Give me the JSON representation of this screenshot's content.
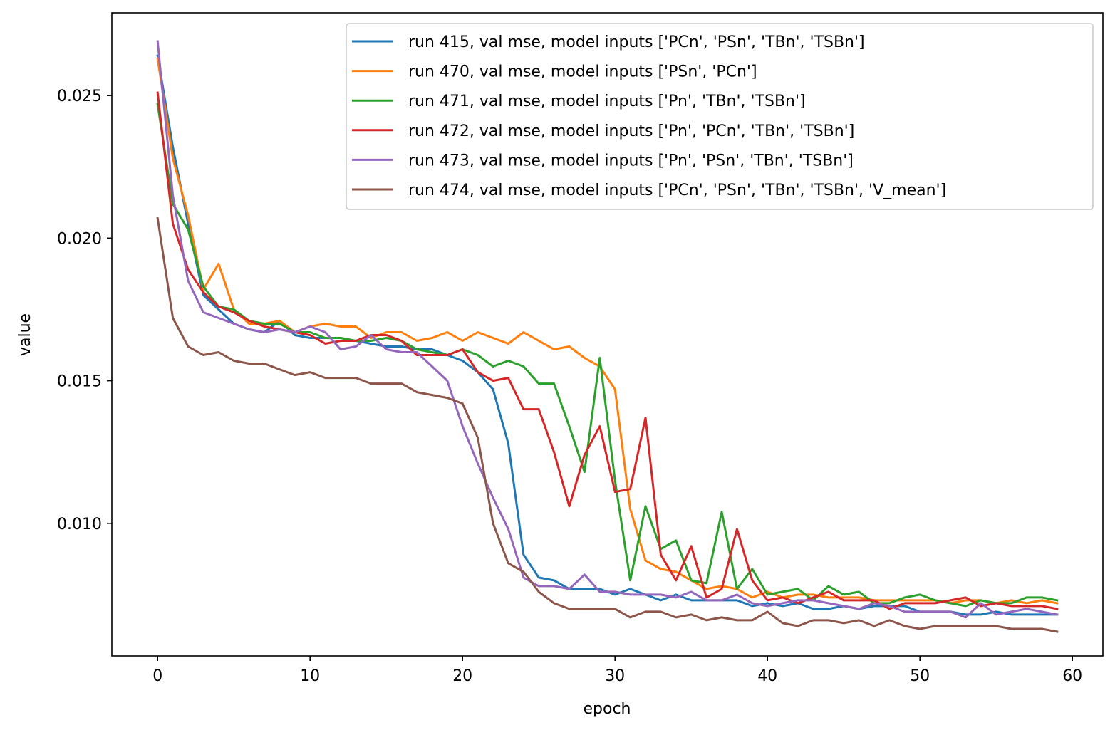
{
  "chart_data": {
    "type": "line",
    "title": "",
    "xlabel": "epoch",
    "ylabel": "value",
    "xlim": [
      -3,
      62
    ],
    "ylim": [
      0.00535,
      0.0279
    ],
    "x_ticks": [
      0,
      10,
      20,
      30,
      40,
      50,
      60
    ],
    "x_tick_labels": [
      "0",
      "10",
      "20",
      "30",
      "40",
      "50",
      "60"
    ],
    "y_ticks": [
      0.01,
      0.015,
      0.02,
      0.025
    ],
    "y_tick_labels": [
      "0.010",
      "0.015",
      "0.020",
      "0.025"
    ],
    "grid": false,
    "legend_position": "top-right",
    "x": [
      0,
      1,
      2,
      3,
      4,
      5,
      6,
      7,
      8,
      9,
      10,
      11,
      12,
      13,
      14,
      15,
      16,
      17,
      18,
      19,
      20,
      21,
      22,
      23,
      24,
      25,
      26,
      27,
      28,
      29,
      30,
      31,
      32,
      33,
      34,
      35,
      36,
      37,
      38,
      39,
      40,
      41,
      42,
      43,
      44,
      45,
      46,
      47,
      48,
      49,
      50,
      51,
      52,
      53,
      54,
      55,
      56,
      57,
      58,
      59
    ],
    "series": [
      {
        "name": "run 415, val mse, model inputs ['PCn', 'PSn', 'TBn', 'TSBn']",
        "color": "#1f77b4",
        "values": [
          0.0264,
          0.0232,
          0.0205,
          0.018,
          0.0175,
          0.017,
          0.0168,
          0.0167,
          0.0171,
          0.0166,
          0.0165,
          0.0165,
          0.0165,
          0.0164,
          0.0163,
          0.0162,
          0.0162,
          0.0161,
          0.0161,
          0.0159,
          0.0157,
          0.0153,
          0.0147,
          0.0128,
          0.0089,
          0.0081,
          0.008,
          0.0077,
          0.0077,
          0.0077,
          0.0075,
          0.0077,
          0.0075,
          0.0073,
          0.0075,
          0.0073,
          0.0073,
          0.0073,
          0.0073,
          0.0071,
          0.0072,
          0.0071,
          0.0072,
          0.007,
          0.007,
          0.0071,
          0.007,
          0.0071,
          0.0071,
          0.0071,
          0.0069,
          0.0069,
          0.0069,
          0.0068,
          0.0068,
          0.0069,
          0.0068,
          0.0068,
          0.0068,
          0.0068
        ]
      },
      {
        "name": "run 470, val mse, model inputs ['PSn', 'PCn']",
        "color": "#ff7f0e",
        "values": [
          0.0263,
          0.0228,
          0.0208,
          0.0182,
          0.0191,
          0.0175,
          0.017,
          0.017,
          0.0171,
          0.0167,
          0.0169,
          0.017,
          0.0169,
          0.0169,
          0.0165,
          0.0167,
          0.0167,
          0.0164,
          0.0165,
          0.0167,
          0.0164,
          0.0167,
          0.0165,
          0.0163,
          0.0167,
          0.0164,
          0.0161,
          0.0162,
          0.0158,
          0.0155,
          0.0147,
          0.0105,
          0.0087,
          0.0084,
          0.0083,
          0.008,
          0.0077,
          0.0078,
          0.0077,
          0.0074,
          0.0076,
          0.0074,
          0.0075,
          0.0075,
          0.0074,
          0.0074,
          0.0074,
          0.0073,
          0.0073,
          0.0073,
          0.0073,
          0.0073,
          0.0072,
          0.0073,
          0.0073,
          0.0072,
          0.0073,
          0.0072,
          0.0073,
          0.0072
        ]
      },
      {
        "name": "run 471, val mse, model inputs ['Pn', 'TBn', 'TSBn']",
        "color": "#2ca02c",
        "values": [
          0.0247,
          0.0212,
          0.0203,
          0.0183,
          0.0176,
          0.0175,
          0.0171,
          0.017,
          0.017,
          0.0167,
          0.0167,
          0.0165,
          0.0165,
          0.0164,
          0.0164,
          0.0165,
          0.0164,
          0.0161,
          0.016,
          0.0159,
          0.0161,
          0.0159,
          0.0155,
          0.0157,
          0.0155,
          0.0149,
          0.0149,
          0.0134,
          0.0118,
          0.0158,
          0.0115,
          0.008,
          0.0106,
          0.0091,
          0.0094,
          0.008,
          0.0079,
          0.0104,
          0.0077,
          0.0084,
          0.0075,
          0.0076,
          0.0077,
          0.0073,
          0.0078,
          0.0075,
          0.0076,
          0.0072,
          0.0072,
          0.0074,
          0.0075,
          0.0073,
          0.0072,
          0.0071,
          0.0073,
          0.0072,
          0.0072,
          0.0074,
          0.0074,
          0.0073
        ]
      },
      {
        "name": "run 472, val mse, model inputs ['Pn', 'PCn', 'TBn', 'TSBn']",
        "color": "#d62728",
        "values": [
          0.0251,
          0.0205,
          0.0189,
          0.0181,
          0.0176,
          0.0174,
          0.0171,
          0.0169,
          0.0168,
          0.0167,
          0.0166,
          0.0163,
          0.0164,
          0.0164,
          0.0166,
          0.0166,
          0.0164,
          0.0159,
          0.0159,
          0.0159,
          0.0161,
          0.0153,
          0.015,
          0.0151,
          0.014,
          0.014,
          0.0125,
          0.0106,
          0.0124,
          0.0134,
          0.0111,
          0.0112,
          0.0137,
          0.0089,
          0.008,
          0.0092,
          0.0074,
          0.0077,
          0.0098,
          0.008,
          0.0073,
          0.0074,
          0.0072,
          0.0074,
          0.0076,
          0.0073,
          0.0073,
          0.0073,
          0.007,
          0.0072,
          0.0072,
          0.0072,
          0.0073,
          0.0074,
          0.0071,
          0.0072,
          0.0071,
          0.0071,
          0.0071,
          0.007
        ]
      },
      {
        "name": "run 473, val mse, model inputs ['Pn', 'PSn', 'TBn', 'TSBn']",
        "color": "#9467bd",
        "values": [
          0.0269,
          0.0215,
          0.0185,
          0.0174,
          0.0172,
          0.017,
          0.0168,
          0.0167,
          0.0168,
          0.0167,
          0.0169,
          0.0167,
          0.0161,
          0.0162,
          0.0166,
          0.0161,
          0.016,
          0.016,
          0.0155,
          0.015,
          0.0134,
          0.0121,
          0.0109,
          0.0098,
          0.0081,
          0.0078,
          0.0078,
          0.0077,
          0.0082,
          0.0076,
          0.0076,
          0.0075,
          0.0075,
          0.0075,
          0.0074,
          0.0076,
          0.0073,
          0.0073,
          0.0075,
          0.0072,
          0.0071,
          0.0072,
          0.0073,
          0.0073,
          0.0072,
          0.0071,
          0.007,
          0.0072,
          0.0071,
          0.0069,
          0.0069,
          0.0069,
          0.0069,
          0.0067,
          0.0072,
          0.0068,
          0.0069,
          0.007,
          0.0069,
          0.0068
        ]
      },
      {
        "name": "run 474, val mse, model inputs ['PCn', 'PSn', 'TBn', 'TSBn', 'V_mean']",
        "color": "#8c564b",
        "values": [
          0.0207,
          0.0172,
          0.0162,
          0.0159,
          0.016,
          0.0157,
          0.0156,
          0.0156,
          0.0154,
          0.0152,
          0.0153,
          0.0151,
          0.0151,
          0.0151,
          0.0149,
          0.0149,
          0.0149,
          0.0146,
          0.0145,
          0.0144,
          0.0142,
          0.013,
          0.01,
          0.0086,
          0.0083,
          0.0076,
          0.0072,
          0.007,
          0.007,
          0.007,
          0.007,
          0.0067,
          0.0069,
          0.0069,
          0.0067,
          0.0068,
          0.0066,
          0.0067,
          0.0066,
          0.0066,
          0.0069,
          0.0065,
          0.0064,
          0.0066,
          0.0066,
          0.0065,
          0.0066,
          0.0064,
          0.0066,
          0.0064,
          0.0063,
          0.0064,
          0.0064,
          0.0064,
          0.0064,
          0.0064,
          0.0063,
          0.0063,
          0.0063,
          0.0062
        ]
      }
    ]
  }
}
